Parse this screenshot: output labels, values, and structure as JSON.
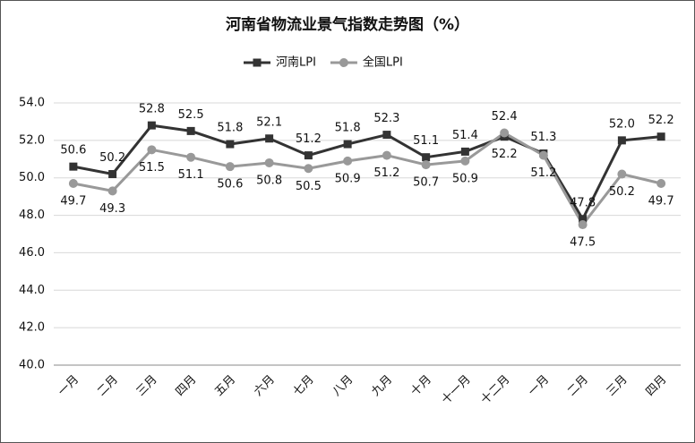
{
  "chart_data": {
    "type": "line",
    "title": "河南省物流业景气指数走势图（%）",
    "categories": [
      "一月",
      "二月",
      "三月",
      "四月",
      "五月",
      "六月",
      "七月",
      "八月",
      "九月",
      "十月",
      "十一月",
      "十二月",
      "一月",
      "二月",
      "三月",
      "四月"
    ],
    "series": [
      {
        "name": "河南LPI",
        "color": "#333333",
        "marker": "square",
        "values": [
          50.6,
          50.2,
          52.8,
          52.5,
          51.8,
          52.1,
          51.2,
          51.8,
          52.3,
          51.1,
          51.4,
          52.2,
          51.3,
          47.8,
          52.0,
          52.2
        ],
        "value_labels": [
          "50.6",
          "50.2",
          "52.8",
          "52.5",
          "51.8",
          "52.1",
          "51.2",
          "51.8",
          "52.3",
          "51.1",
          "51.4",
          "52.2",
          "51.3",
          "47.8",
          "52.0",
          "52.2"
        ]
      },
      {
        "name": "全国LPI",
        "color": "#999999",
        "marker": "circle",
        "values": [
          49.7,
          49.3,
          51.5,
          51.1,
          50.6,
          50.8,
          50.5,
          50.9,
          51.2,
          50.7,
          50.9,
          52.4,
          51.2,
          47.5,
          50.2,
          49.7
        ],
        "value_labels": [
          "49.7",
          "49.3",
          "51.5",
          "51.1",
          "50.6",
          "50.8",
          "50.5",
          "50.9",
          "51.2",
          "50.7",
          "50.9",
          "52.4",
          "51.2",
          "47.5",
          "50.2",
          "49.7"
        ]
      }
    ],
    "ylim": [
      40,
      54
    ],
    "yticks": [
      {
        "value": 40,
        "label": "40.0"
      },
      {
        "value": 42,
        "label": "42.0"
      },
      {
        "value": 44,
        "label": "44.0"
      },
      {
        "value": 46,
        "label": "46.0"
      },
      {
        "value": 48,
        "label": "48.0"
      },
      {
        "value": 50,
        "label": "50.0"
      },
      {
        "value": 52,
        "label": "52.0"
      },
      {
        "value": 54,
        "label": "54.0"
      }
    ],
    "grid": true,
    "legend": "top"
  }
}
